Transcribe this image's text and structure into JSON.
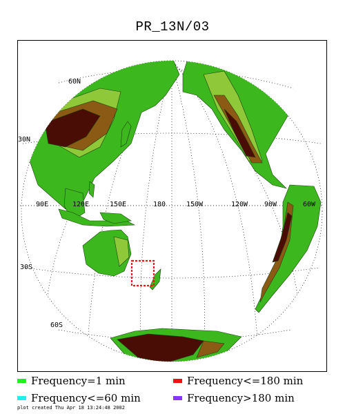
{
  "title": "PR_13N/03",
  "map": {
    "projection_labels": {
      "lat": [
        "60N",
        "30N",
        "30S",
        "60S"
      ],
      "lon": [
        "90E",
        "120E",
        "150E",
        "180",
        "150W",
        "120W",
        "90W",
        "60W"
      ]
    }
  },
  "legend": {
    "items": [
      {
        "label": "Frequency=1 min",
        "color": "#22ee22"
      },
      {
        "label": "Frequency<=180 min",
        "color": "#ee1111"
      },
      {
        "label": "Frequency<=60 min",
        "color": "#22eeee"
      },
      {
        "label": "Frequency>180 min",
        "color": "#8833ff"
      }
    ]
  },
  "footer": "plot created Thu Apr 18 13:24:48 2002",
  "colors": {
    "lowland": "#3cb81e",
    "upland": "#8fc93a",
    "highland": "#8b5a14",
    "peak": "#4a0d05",
    "region_box": "#ee1111"
  }
}
